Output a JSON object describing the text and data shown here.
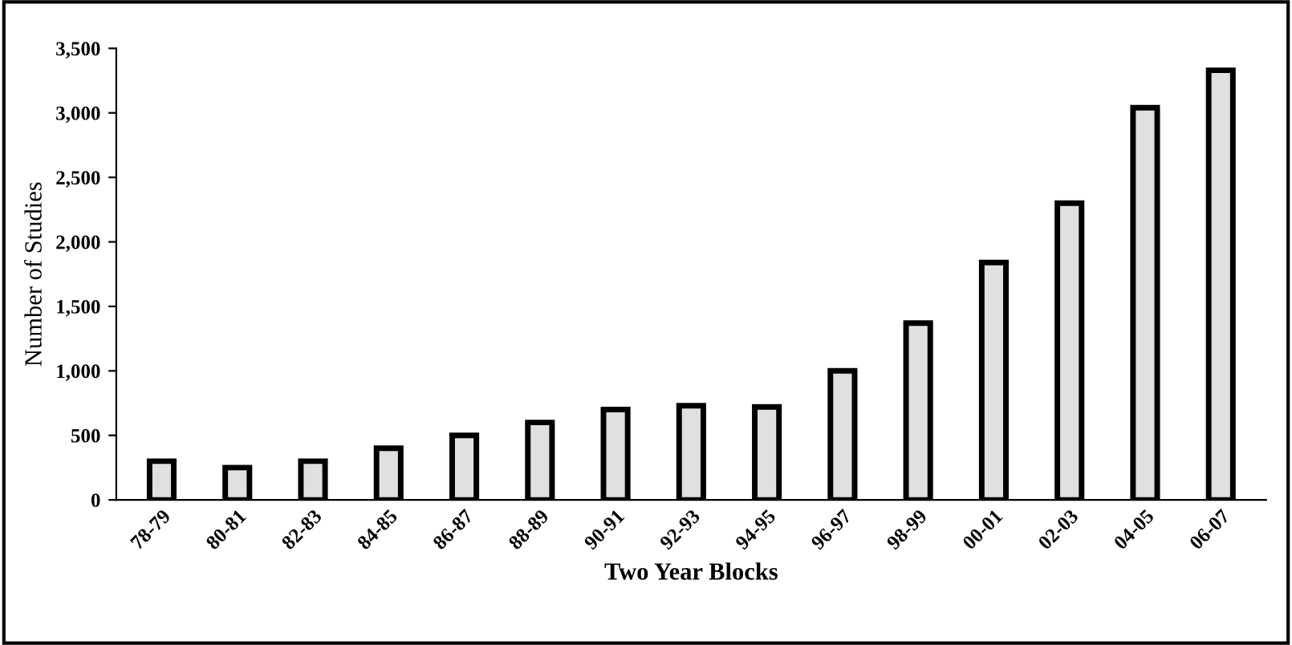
{
  "chart_data": {
    "type": "bar",
    "xlabel": "Two Year Blocks",
    "ylabel": "Number of Studies",
    "categories": [
      "78-79",
      "80-81",
      "82-83",
      "84-85",
      "86-87",
      "88-89",
      "90-91",
      "92-93",
      "94-95",
      "96-97",
      "98-99",
      "00-01",
      "02-03",
      "04-05",
      "06-07"
    ],
    "values": [
      300,
      250,
      300,
      400,
      500,
      600,
      700,
      730,
      720,
      1000,
      1370,
      1840,
      2300,
      3040,
      3330
    ],
    "color": "#e0e0e0",
    "ylim": [
      0,
      3500
    ],
    "yticks": [
      {
        "value": 0,
        "label": "0"
      },
      {
        "value": 500,
        "label": "500"
      },
      {
        "value": 1000,
        "label": "1,000"
      },
      {
        "value": 1500,
        "label": "1,500"
      },
      {
        "value": 2000,
        "label": "2,000"
      },
      {
        "value": 2500,
        "label": "2,500"
      },
      {
        "value": 3000,
        "label": "3,000"
      },
      {
        "value": 3500,
        "label": "3,500"
      }
    ],
    "grid": false
  }
}
